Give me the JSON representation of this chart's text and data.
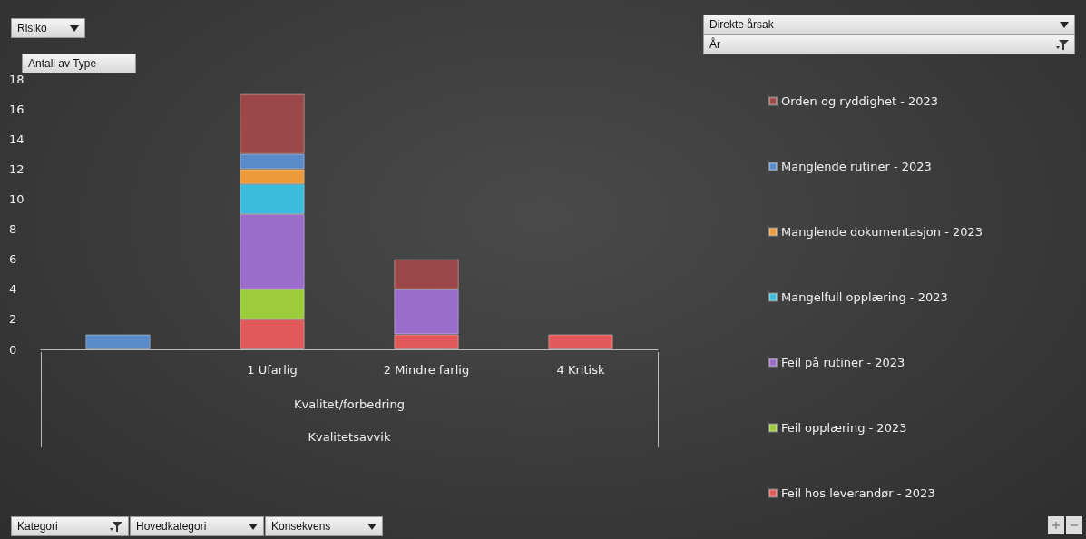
{
  "chart_data": {
    "type": "bar",
    "stacked": true,
    "ylabel": "Antall av Type",
    "legend_title": "Direkte årsak",
    "annotations": [
      "Risiko",
      "År",
      "Kategori",
      "Hovedkategori",
      "Konsekvens",
      "Kvalitet/forbedring",
      "Kvalitetsavvik"
    ],
    "categories": [
      null,
      "1 Ufarlig",
      "2 Mindre farlig",
      "4 Kritisk"
    ],
    "series": [
      {
        "name": "Feil hos leverandør - 2023",
        "color": "#e05a5a",
        "values": [
          null,
          2,
          1,
          1
        ]
      },
      {
        "name": "Feil opplæring - 2023",
        "color": "#9ccc3c",
        "values": [
          null,
          2,
          null,
          null
        ]
      },
      {
        "name": "Feil på rutiner - 2023",
        "color": "#9a6ccc",
        "values": [
          null,
          5,
          3,
          null
        ]
      },
      {
        "name": "Mangelfull opplæring - 2023",
        "color": "#3cbcdc",
        "values": [
          null,
          2,
          null,
          null
        ]
      },
      {
        "name": "Manglende dokumentasjon - 2023",
        "color": "#ec9a3a",
        "values": [
          null,
          1,
          null,
          null
        ]
      },
      {
        "name": "Manglende rutiner - 2023",
        "color": "#5a8ccc",
        "values": [
          1,
          1,
          null,
          null
        ]
      },
      {
        "name": "Orden og ryddighet - 2023",
        "color": "#9c4848",
        "values": [
          null,
          4,
          2,
          null
        ]
      }
    ],
    "ylim": [
      0,
      18
    ],
    "yticks": [
      0,
      2,
      4,
      6,
      8,
      10,
      12,
      14,
      16,
      18
    ],
    "grid": false,
    "legend": "right"
  }
}
